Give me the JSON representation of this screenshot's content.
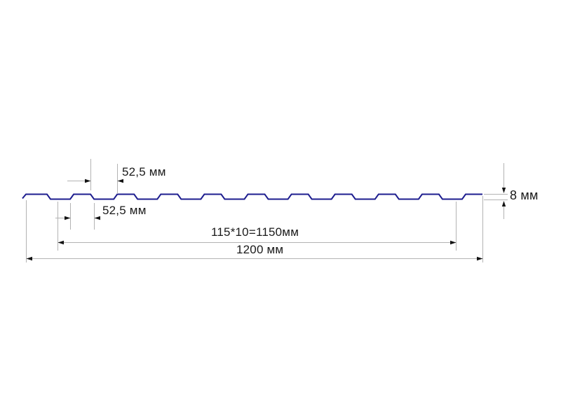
{
  "diagram": {
    "kind": "profiled-sheet-cross-section",
    "units": "мм",
    "profile": {
      "waves": 10,
      "wave_pitch_mm": 115,
      "crest_width_mm": 52.5,
      "trough_width_mm": 52.5,
      "height_mm": 8,
      "overall_width_mm": 1200,
      "covered_width_mm": 1150
    },
    "labels": {
      "trough_width_top": "52,5 мм",
      "crest_width_bottom": "52,5 мм",
      "pitch_total": "115*10=1150мм",
      "overall_width": "1200 мм",
      "height": "8 мм"
    },
    "colors": {
      "profile": "#1d1d8f",
      "dimension_line": "#b3b3b3",
      "arrow": "#141414",
      "text": "#1a1a1a",
      "background": "#ffffff"
    }
  }
}
